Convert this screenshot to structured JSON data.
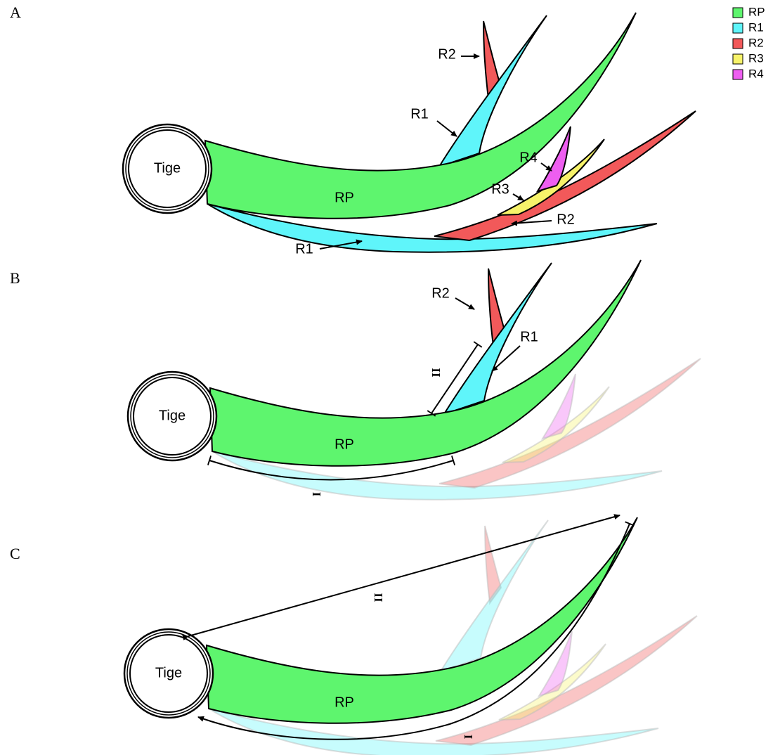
{
  "panels": [
    {
      "label": "A",
      "stem": "Tige",
      "main_root": "RP",
      "annotations": [
        "R2",
        "R1",
        "R4",
        "R3",
        "R2",
        "R1"
      ]
    },
    {
      "label": "B",
      "stem": "Tige",
      "main_root": "RP",
      "annotations": [
        "R2",
        "R1"
      ],
      "measures": [
        "II",
        "I"
      ]
    },
    {
      "label": "C",
      "stem": "Tige",
      "main_root": "RP",
      "measures": [
        "II",
        "I"
      ]
    }
  ],
  "legend": [
    {
      "label": "RP",
      "color": "#5ef56e"
    },
    {
      "label": "R1",
      "color": "#5ff5fa"
    },
    {
      "label": "R2",
      "color": "#f2595a"
    },
    {
      "label": "R3",
      "color": "#f7f36a"
    },
    {
      "label": "R4",
      "color": "#ee5ef0"
    }
  ]
}
